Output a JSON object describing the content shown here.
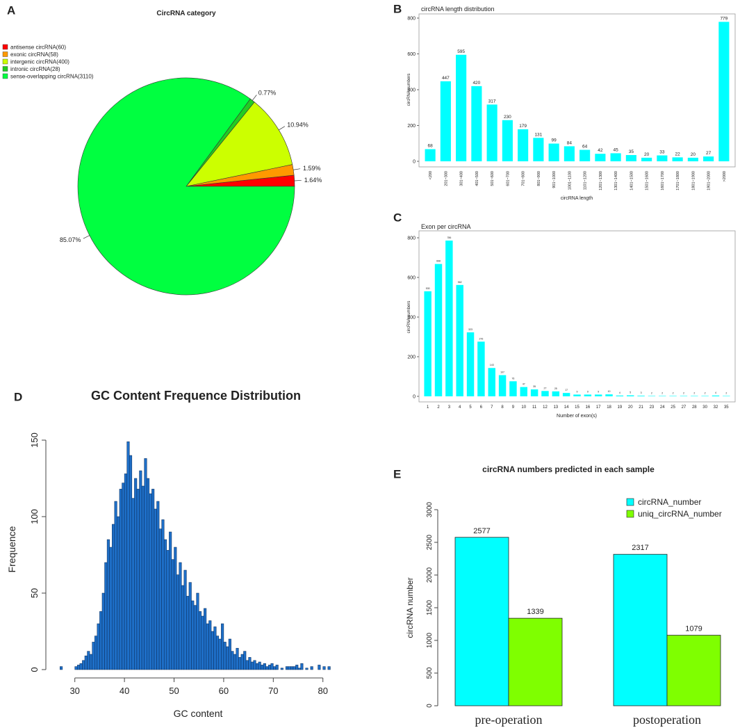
{
  "chart_data": [
    {
      "type": "pie",
      "panel": "A",
      "title": "CircRNA category",
      "categories": [
        "antisense circRNA(60)",
        "exonic circRNA(58)",
        "intergenic circRNA(400)",
        "intronic circRNA(28)",
        "sense-overlapping circRNA(3110)"
      ],
      "values": [
        1.64,
        1.59,
        10.94,
        0.77,
        85.07
      ],
      "value_labels": [
        "1.64%",
        "1.59%",
        "10.94%",
        "0.77%",
        "85.07%"
      ],
      "colors": [
        "#ff0000",
        "#ff9900",
        "#ccff00",
        "#22cc22",
        "#00ff40"
      ],
      "legend": "top-left"
    },
    {
      "type": "bar",
      "panel": "B",
      "title": "circRNA length distribution",
      "x_label": "circRNA length",
      "y_label": "circRNA numbers",
      "categories": [
        "<200",
        "201~300",
        "301~400",
        "401~500",
        "501~600",
        "601~700",
        "701~800",
        "801~900",
        "901~1000",
        "1001~1100",
        "1101~1200",
        "1201~1300",
        "1301~1400",
        "1401~1500",
        "1501~1600",
        "1601~1700",
        "1701~1800",
        "1801~1900",
        "1901~2000",
        ">2000"
      ],
      "values": [
        68,
        447,
        595,
        420,
        317,
        230,
        179,
        131,
        99,
        84,
        64,
        42,
        45,
        35,
        20,
        33,
        22,
        20,
        27,
        779
      ],
      "color": "#00ffff",
      "ylim": [
        0,
        810
      ],
      "yticks": [
        0,
        200,
        400,
        600,
        800
      ],
      "rotate_x_labels": true
    },
    {
      "type": "bar",
      "panel": "C",
      "title": "Exon per circRNA",
      "x_label": "Number of exon(s)",
      "y_label": "circRNA numbers",
      "categories": [
        "1",
        "2",
        "3",
        "4",
        "5",
        "6",
        "7",
        "8",
        "9",
        "10",
        "11",
        "12",
        "13",
        "14",
        "15",
        "16",
        "17",
        "18",
        "19",
        "20",
        "21",
        "23",
        "24",
        "25",
        "27",
        "28",
        "30",
        "32",
        "35"
      ],
      "values": [
        530,
        668,
        786,
        562,
        323,
        276,
        143,
        107,
        76,
        47,
        35,
        27,
        25,
        17,
        9,
        9,
        9,
        10,
        4,
        5,
        3,
        2,
        2,
        2,
        2,
        2,
        2,
        4,
        2
      ],
      "color": "#00ffff",
      "ylim": [
        0,
        820
      ],
      "yticks": [
        0,
        200,
        400,
        600,
        800
      ],
      "rotate_x_labels": false
    },
    {
      "type": "histogram",
      "panel": "D",
      "title": "GC Content Frequence Distribution",
      "x_label": "GC content",
      "y_label": "Frequence",
      "bins": [
        27,
        27.5,
        28,
        28.5,
        29,
        29.5,
        30,
        30.5,
        31,
        31.5,
        32,
        32.5,
        33,
        33.5,
        34,
        34.5,
        35,
        35.5,
        36,
        36.5,
        37,
        37.5,
        38,
        38.5,
        39,
        39.5,
        40,
        40.5,
        41,
        41.5,
        42,
        42.5,
        43,
        43.5,
        44,
        44.5,
        45,
        45.5,
        46,
        46.5,
        47,
        47.5,
        48,
        48.5,
        49,
        49.5,
        50,
        50.5,
        51,
        51.5,
        52,
        52.5,
        53,
        53.5,
        54,
        54.5,
        55,
        55.5,
        56,
        56.5,
        57,
        57.5,
        58,
        58.5,
        59,
        59.5,
        60,
        60.5,
        61,
        61.5,
        62,
        62.5,
        63,
        63.5,
        64,
        64.5,
        65,
        65.5,
        66,
        66.5,
        67,
        67.5,
        68,
        68.5,
        69,
        69.5,
        70,
        70.5,
        71,
        71.5,
        72,
        72.5,
        73,
        73.5,
        74,
        74.5,
        75,
        75.5,
        76,
        76.5,
        77,
        77.5,
        78,
        78.5,
        79,
        79.5,
        80,
        80.5,
        81,
        81.5
      ],
      "values": [
        2,
        0,
        0,
        0,
        0,
        0,
        2,
        3,
        4,
        6,
        9,
        12,
        10,
        18,
        22,
        30,
        38,
        50,
        70,
        85,
        80,
        95,
        110,
        100,
        118,
        122,
        128,
        149,
        140,
        112,
        125,
        118,
        130,
        120,
        138,
        125,
        115,
        118,
        105,
        110,
        92,
        98,
        85,
        78,
        90,
        72,
        80,
        62,
        70,
        55,
        65,
        48,
        57,
        45,
        42,
        50,
        38,
        35,
        40,
        30,
        32,
        25,
        28,
        22,
        20,
        30,
        18,
        15,
        20,
        12,
        10,
        14,
        8,
        10,
        12,
        6,
        8,
        5,
        6,
        4,
        5,
        3,
        4,
        2,
        3,
        4,
        2,
        3,
        0,
        1,
        0,
        2,
        2,
        2,
        2,
        3,
        1,
        4,
        0,
        1,
        0,
        2,
        0,
        0,
        3,
        0,
        2,
        0,
        2
      ],
      "color": "#1e6fc8",
      "xlim": [
        25,
        82
      ],
      "xticks": [
        30,
        40,
        50,
        60,
        70,
        80
      ],
      "ylim": [
        0,
        160
      ],
      "yticks": [
        0,
        50,
        100,
        150
      ]
    },
    {
      "type": "bar",
      "panel": "E",
      "title": "circRNA numbers predicted in each sample",
      "y_label": "circRNA number",
      "categories": [
        "pre-operation",
        "postoperation"
      ],
      "series": [
        {
          "name": "circRNA_number",
          "color": "#00ffff",
          "values": [
            2577,
            2317
          ]
        },
        {
          "name": "uniq_circRNA_number",
          "color": "#7fff00",
          "values": [
            1339,
            1079
          ]
        }
      ],
      "ylim": [
        0,
        3000
      ],
      "yticks": [
        0,
        500,
        1000,
        1500,
        2000,
        2500,
        3000
      ],
      "legend": "top-right"
    }
  ]
}
